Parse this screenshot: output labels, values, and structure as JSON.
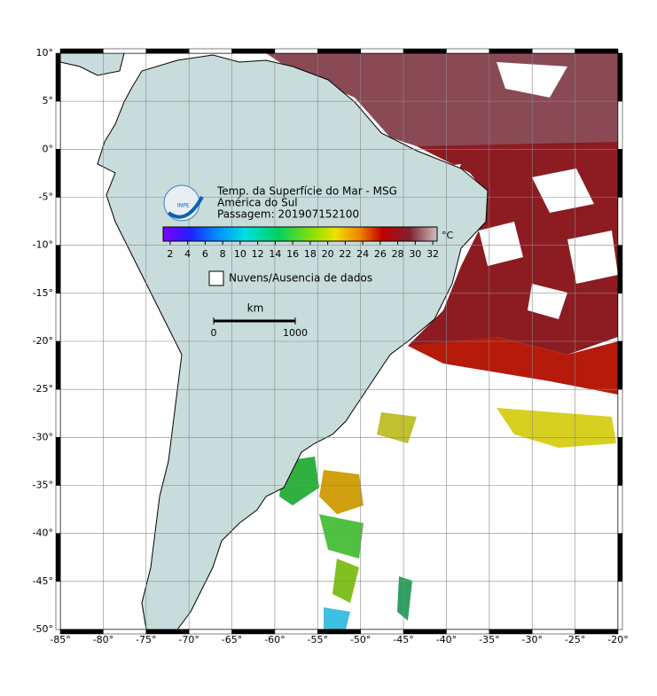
{
  "map": {
    "title_lines": [
      "Temp. da Superfície do Mar - MSG",
      "América do Sul",
      "Passagem: 201907152100"
    ],
    "logo_text": "INPE",
    "xlim": [
      -85,
      -20
    ],
    "ylim": [
      -50,
      10
    ],
    "lat_ticks": [
      {
        "value": 10,
        "label": "10°"
      },
      {
        "value": 5,
        "label": "5°"
      },
      {
        "value": 0,
        "label": "0°"
      },
      {
        "value": -5,
        "label": "-5°"
      },
      {
        "value": -10,
        "label": "-10°"
      },
      {
        "value": -15,
        "label": "-15°"
      },
      {
        "value": -20,
        "label": "-20°"
      },
      {
        "value": -25,
        "label": "-25°"
      },
      {
        "value": -30,
        "label": "-30°"
      },
      {
        "value": -35,
        "label": "-35°"
      },
      {
        "value": -40,
        "label": "-40°"
      },
      {
        "value": -45,
        "label": "-45°"
      },
      {
        "value": -50,
        "label": "-50°"
      }
    ],
    "lon_ticks": [
      {
        "value": -85,
        "label": "-85°"
      },
      {
        "value": -80,
        "label": "-80°"
      },
      {
        "value": -75,
        "label": "-75°"
      },
      {
        "value": -70,
        "label": "-70°"
      },
      {
        "value": -65,
        "label": "-65°"
      },
      {
        "value": -60,
        "label": "-60°"
      },
      {
        "value": -55,
        "label": "-55°"
      },
      {
        "value": -50,
        "label": "-50°"
      },
      {
        "value": -45,
        "label": "-45°"
      },
      {
        "value": -40,
        "label": "-40°"
      },
      {
        "value": -35,
        "label": "-35°"
      },
      {
        "value": -30,
        "label": "-30°"
      },
      {
        "value": -25,
        "label": "-25°"
      },
      {
        "value": -20,
        "label": "-20°"
      }
    ],
    "colorbar": {
      "unit": "°C",
      "clim": [
        1.2,
        32.5
      ],
      "ticks": [
        2,
        4,
        6,
        8,
        10,
        12,
        14,
        16,
        18,
        20,
        22,
        24,
        26,
        28,
        30,
        32
      ]
    },
    "legend": "Nuvens/Ausencia de dados",
    "scale_bar": {
      "unit": "km",
      "range": [
        0,
        1000
      ],
      "ticks": [
        0,
        1000
      ]
    }
  }
}
